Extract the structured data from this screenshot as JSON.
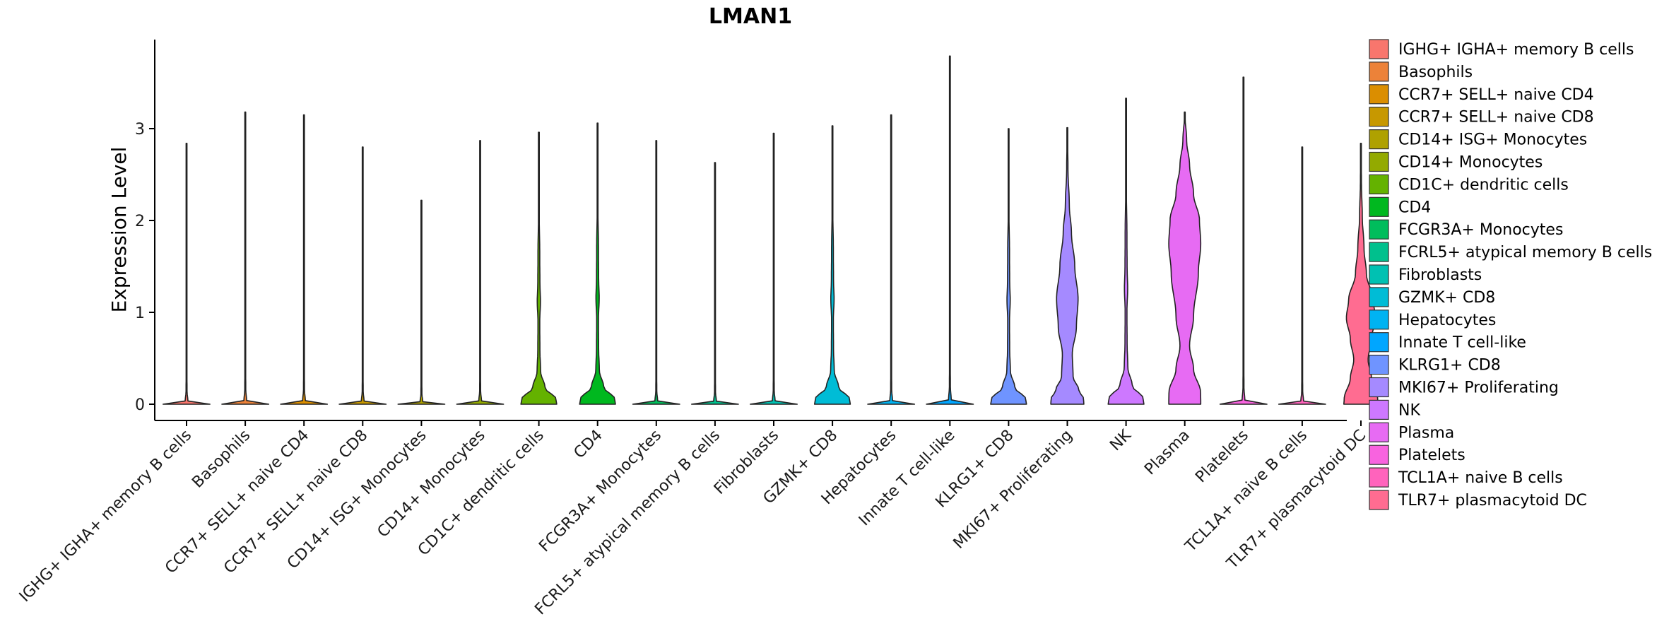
{
  "chart_data": {
    "type": "violin",
    "title": "LMAN1",
    "xlabel": "",
    "ylabel": "Expression Level",
    "ylim": [
      -0.2,
      3.95
    ],
    "yticks": [
      0,
      1,
      2,
      3
    ],
    "legend_position": "right",
    "groups": [
      {
        "name": "IGHG+ IGHA+ memory B cells",
        "legend": " IGHG+ IGHA+ memory B cells",
        "color": "#F8766D",
        "max": 2.84,
        "shape": "flat"
      },
      {
        "name": "Basophils",
        "legend": "Basophils",
        "color": "#EC8239",
        "max": 3.18,
        "shape": "flat"
      },
      {
        "name": "CCR7+ SELL+ naive CD4",
        "legend": "CCR7+ SELL+ naive CD4",
        "color": "#DB8E00",
        "max": 3.15,
        "shape": "flat"
      },
      {
        "name": "CCR7+ SELL+ naive CD8",
        "legend": "CCR7+ SELL+ naive CD8",
        "color": "#C79800",
        "max": 2.8,
        "shape": "flat"
      },
      {
        "name": "CD14+ ISG+ Monocytes",
        "legend": "CD14+ ISG+ Monocytes",
        "color": "#AFA100",
        "max": 2.22,
        "shape": "flat"
      },
      {
        "name": "CD14+ Monocytes",
        "legend": "CD14+ Monocytes",
        "color": "#93AA00",
        "max": 2.87,
        "shape": "flat"
      },
      {
        "name": "CD1C+ dendritic cells",
        "legend": "CD1C+ dendritic cells",
        "color": "#64B200",
        "max": 2.96,
        "shape": "low"
      },
      {
        "name": "CD4",
        "legend": "CD4",
        "color": "#00B81F",
        "max": 3.06,
        "shape": "low"
      },
      {
        "name": "FCGR3A+ Monocytes",
        "legend": "FCGR3A+ Monocytes",
        "color": "#00BD5C",
        "max": 2.87,
        "shape": "flat"
      },
      {
        "name": "FCRL5+ atypical memory B cells",
        "legend": "FCRL5+ atypical memory B cells",
        "color": "#00C08D",
        "max": 2.63,
        "shape": "flat"
      },
      {
        "name": "Fibroblasts",
        "legend": "Fibroblasts",
        "color": "#00C1B2",
        "max": 2.95,
        "shape": "flat"
      },
      {
        "name": "GZMK+ CD8",
        "legend": "GZMK+ CD8",
        "color": "#00BCD6",
        "max": 3.03,
        "shape": "low"
      },
      {
        "name": "Hepatocytes",
        "legend": "Hepatocytes",
        "color": "#00B3F2",
        "max": 3.15,
        "shape": "flat"
      },
      {
        "name": "Innate T cell-like",
        "legend": "Innate T cell-like",
        "color": "#00A6FF",
        "max": 3.79,
        "shape": "flat"
      },
      {
        "name": "KLRG1+ CD8",
        "legend": "KLRG1+ CD8",
        "color": "#6F94FF",
        "max": 3.0,
        "shape": "low"
      },
      {
        "name": "MKI67+ Proliferating",
        "legend": "MKI67+ Proliferating",
        "color": "#A58AFF",
        "max": 3.01,
        "shape": "mid"
      },
      {
        "name": "NK",
        "legend": "NK",
        "color": "#CD78FF",
        "max": 3.33,
        "shape": "low"
      },
      {
        "name": "Plasma",
        "legend": "Plasma",
        "color": "#E76BF3",
        "max": 3.18,
        "shape": "high"
      },
      {
        "name": "Platelets",
        "legend": "Platelets",
        "color": "#F863DF",
        "max": 3.56,
        "shape": "flat"
      },
      {
        "name": "TCL1A+ naive B cells",
        "legend": "TCL1A+ naive B cells",
        "color": "#FF63BC",
        "max": 2.8,
        "shape": "flat"
      },
      {
        "name": "TLR7+ plasmacytoid DC",
        "legend": "TLR7+ plasmacytoid DC",
        "color": "#FF6C91",
        "max": 2.84,
        "shape": "pdc"
      }
    ]
  }
}
